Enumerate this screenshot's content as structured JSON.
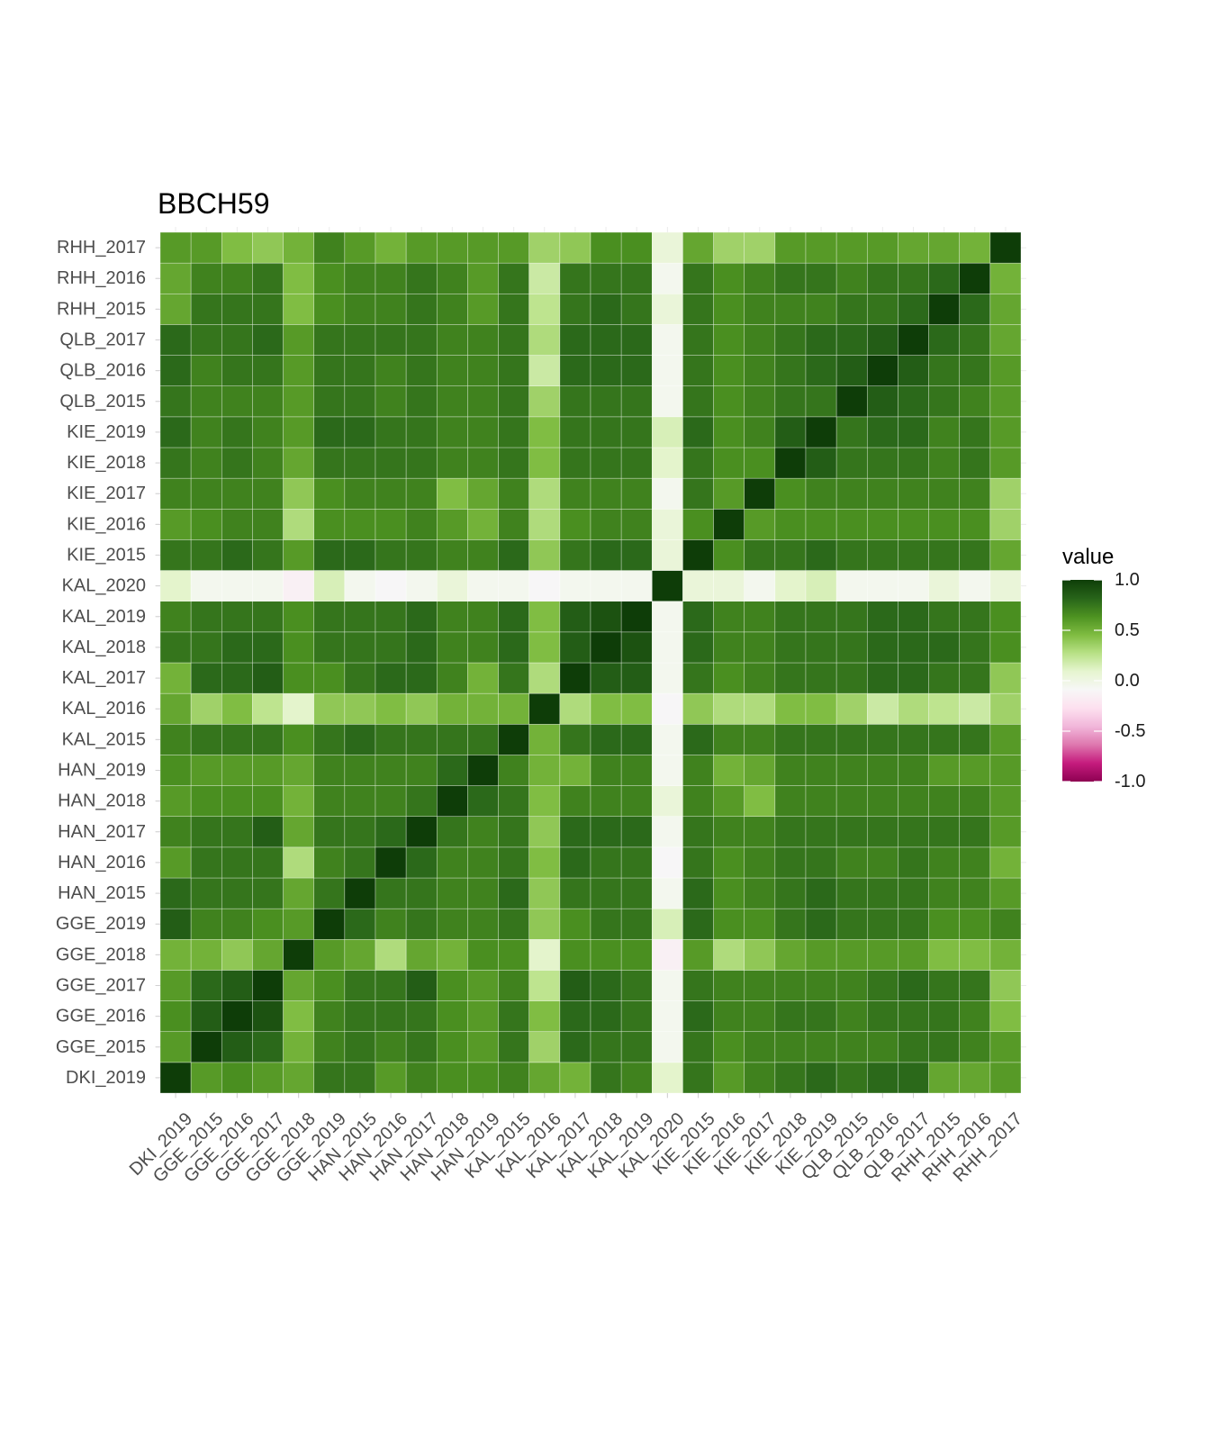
{
  "chart_data": {
    "type": "heatmap",
    "title": "BBCH59",
    "xlabel": "",
    "ylabel": "",
    "labels": [
      "DKI_2019",
      "GGE_2015",
      "GGE_2016",
      "GGE_2017",
      "GGE_2018",
      "GGE_2019",
      "HAN_2015",
      "HAN_2016",
      "HAN_2017",
      "HAN_2018",
      "HAN_2019",
      "KAL_2015",
      "KAL_2016",
      "KAL_2017",
      "KAL_2018",
      "KAL_2019",
      "KAL_2020",
      "KIE_2015",
      "KIE_2016",
      "KIE_2017",
      "KIE_2018",
      "KIE_2019",
      "QLB_2015",
      "QLB_2016",
      "QLB_2017",
      "RHH_2015",
      "RHH_2016",
      "RHH_2017"
    ],
    "matrix": [
      [
        1.0,
        0.6,
        0.65,
        0.6,
        0.55,
        0.75,
        0.75,
        0.6,
        0.7,
        0.65,
        0.65,
        0.7,
        0.55,
        0.5,
        0.75,
        0.7,
        0.1,
        0.75,
        0.6,
        0.7,
        0.75,
        0.8,
        0.75,
        0.8,
        0.8,
        0.55,
        0.55,
        0.6
      ],
      [
        0.6,
        1.0,
        0.85,
        0.8,
        0.5,
        0.7,
        0.75,
        0.7,
        0.75,
        0.65,
        0.6,
        0.75,
        0.35,
        0.8,
        0.75,
        0.75,
        -0.05,
        0.75,
        0.65,
        0.7,
        0.7,
        0.7,
        0.7,
        0.7,
        0.75,
        0.75,
        0.7,
        0.6
      ],
      [
        0.65,
        0.85,
        1.0,
        0.9,
        0.45,
        0.7,
        0.75,
        0.75,
        0.75,
        0.65,
        0.6,
        0.75,
        0.45,
        0.8,
        0.8,
        0.75,
        -0.05,
        0.8,
        0.7,
        0.7,
        0.75,
        0.75,
        0.7,
        0.75,
        0.75,
        0.75,
        0.7,
        0.45
      ],
      [
        0.6,
        0.8,
        0.85,
        1.0,
        0.55,
        0.65,
        0.75,
        0.75,
        0.85,
        0.65,
        0.6,
        0.7,
        0.25,
        0.85,
        0.8,
        0.75,
        -0.05,
        0.75,
        0.7,
        0.7,
        0.7,
        0.7,
        0.7,
        0.75,
        0.8,
        0.75,
        0.75,
        0.4
      ],
      [
        0.5,
        0.5,
        0.4,
        0.55,
        1.0,
        0.6,
        0.55,
        0.3,
        0.55,
        0.5,
        0.65,
        0.65,
        0.1,
        0.65,
        0.65,
        0.65,
        -0.15,
        0.6,
        0.3,
        0.4,
        0.55,
        0.6,
        0.6,
        0.6,
        0.6,
        0.45,
        0.45,
        0.5
      ],
      [
        0.85,
        0.7,
        0.7,
        0.65,
        0.6,
        1.0,
        0.8,
        0.7,
        0.75,
        0.7,
        0.7,
        0.75,
        0.4,
        0.65,
        0.75,
        0.75,
        0.15,
        0.8,
        0.65,
        0.65,
        0.75,
        0.8,
        0.75,
        0.75,
        0.75,
        0.65,
        0.65,
        0.7
      ],
      [
        0.8,
        0.75,
        0.75,
        0.75,
        0.55,
        0.75,
        1.0,
        0.75,
        0.75,
        0.7,
        0.7,
        0.8,
        0.4,
        0.75,
        0.75,
        0.75,
        -0.05,
        0.8,
        0.65,
        0.7,
        0.75,
        0.8,
        0.75,
        0.75,
        0.75,
        0.7,
        0.7,
        0.6
      ],
      [
        0.6,
        0.75,
        0.75,
        0.75,
        0.3,
        0.7,
        0.75,
        1.0,
        0.8,
        0.7,
        0.7,
        0.75,
        0.45,
        0.8,
        0.75,
        0.75,
        -0.1,
        0.75,
        0.65,
        0.7,
        0.75,
        0.75,
        0.7,
        0.7,
        0.75,
        0.7,
        0.7,
        0.5
      ],
      [
        0.7,
        0.75,
        0.75,
        0.85,
        0.55,
        0.75,
        0.75,
        0.8,
        1.0,
        0.75,
        0.7,
        0.75,
        0.4,
        0.8,
        0.8,
        0.8,
        -0.05,
        0.75,
        0.7,
        0.7,
        0.75,
        0.75,
        0.75,
        0.75,
        0.75,
        0.75,
        0.75,
        0.6
      ],
      [
        0.6,
        0.65,
        0.65,
        0.65,
        0.5,
        0.7,
        0.7,
        0.7,
        0.75,
        1.0,
        0.8,
        0.75,
        0.45,
        0.7,
        0.7,
        0.7,
        0.05,
        0.7,
        0.6,
        0.45,
        0.7,
        0.7,
        0.7,
        0.7,
        0.7,
        0.7,
        0.7,
        0.6
      ],
      [
        0.65,
        0.6,
        0.6,
        0.6,
        0.55,
        0.7,
        0.7,
        0.7,
        0.7,
        0.8,
        1.0,
        0.7,
        0.5,
        0.5,
        0.7,
        0.7,
        -0.05,
        0.7,
        0.5,
        0.55,
        0.7,
        0.7,
        0.7,
        0.7,
        0.7,
        0.6,
        0.6,
        0.6
      ],
      [
        0.7,
        0.75,
        0.75,
        0.75,
        0.65,
        0.75,
        0.8,
        0.75,
        0.75,
        0.75,
        0.75,
        1.0,
        0.5,
        0.75,
        0.8,
        0.8,
        -0.05,
        0.8,
        0.7,
        0.7,
        0.75,
        0.75,
        0.75,
        0.75,
        0.75,
        0.75,
        0.75,
        0.6
      ],
      [
        0.55,
        0.35,
        0.45,
        0.25,
        0.1,
        0.4,
        0.4,
        0.45,
        0.4,
        0.5,
        0.5,
        0.5,
        1.0,
        0.3,
        0.45,
        0.45,
        -0.1,
        0.4,
        0.3,
        0.3,
        0.45,
        0.45,
        0.35,
        0.2,
        0.3,
        0.25,
        0.2,
        0.35
      ],
      [
        0.5,
        0.8,
        0.8,
        0.85,
        0.65,
        0.65,
        0.75,
        0.8,
        0.8,
        0.7,
        0.5,
        0.75,
        0.3,
        1.0,
        0.85,
        0.85,
        -0.05,
        0.75,
        0.65,
        0.7,
        0.75,
        0.75,
        0.75,
        0.8,
        0.8,
        0.75,
        0.75,
        0.4
      ],
      [
        0.75,
        0.75,
        0.8,
        0.8,
        0.65,
        0.75,
        0.75,
        0.75,
        0.8,
        0.7,
        0.7,
        0.8,
        0.45,
        0.85,
        1.0,
        0.9,
        -0.05,
        0.8,
        0.7,
        0.7,
        0.75,
        0.75,
        0.75,
        0.8,
        0.8,
        0.8,
        0.75,
        0.65
      ],
      [
        0.7,
        0.75,
        0.75,
        0.75,
        0.65,
        0.75,
        0.75,
        0.75,
        0.8,
        0.7,
        0.7,
        0.8,
        0.45,
        0.85,
        0.9,
        1.0,
        -0.05,
        0.8,
        0.7,
        0.7,
        0.75,
        0.75,
        0.75,
        0.8,
        0.8,
        0.75,
        0.75,
        0.65
      ],
      [
        0.1,
        -0.05,
        -0.05,
        -0.05,
        -0.15,
        0.15,
        -0.05,
        -0.1,
        -0.05,
        0.05,
        -0.05,
        -0.05,
        -0.1,
        -0.05,
        -0.05,
        -0.05,
        1.0,
        0.05,
        0.05,
        -0.05,
        0.1,
        0.15,
        -0.05,
        -0.05,
        -0.05,
        0.05,
        -0.05,
        0.05
      ],
      [
        0.75,
        0.75,
        0.8,
        0.75,
        0.6,
        0.8,
        0.8,
        0.75,
        0.75,
        0.7,
        0.7,
        0.8,
        0.4,
        0.75,
        0.8,
        0.8,
        0.05,
        1.0,
        0.65,
        0.75,
        0.75,
        0.8,
        0.75,
        0.75,
        0.75,
        0.75,
        0.75,
        0.55
      ],
      [
        0.6,
        0.65,
        0.7,
        0.7,
        0.3,
        0.65,
        0.65,
        0.65,
        0.7,
        0.6,
        0.5,
        0.7,
        0.3,
        0.65,
        0.7,
        0.7,
        0.05,
        0.65,
        1.0,
        0.6,
        0.65,
        0.65,
        0.65,
        0.65,
        0.65,
        0.65,
        0.65,
        0.35
      ],
      [
        0.7,
        0.7,
        0.7,
        0.7,
        0.4,
        0.65,
        0.7,
        0.7,
        0.7,
        0.45,
        0.55,
        0.7,
        0.3,
        0.7,
        0.7,
        0.7,
        -0.05,
        0.75,
        0.6,
        1.0,
        0.65,
        0.7,
        0.7,
        0.7,
        0.7,
        0.7,
        0.7,
        0.35
      ],
      [
        0.75,
        0.7,
        0.75,
        0.7,
        0.55,
        0.75,
        0.75,
        0.75,
        0.75,
        0.7,
        0.7,
        0.75,
        0.45,
        0.75,
        0.75,
        0.75,
        0.1,
        0.75,
        0.65,
        0.65,
        1.0,
        0.85,
        0.75,
        0.75,
        0.75,
        0.7,
        0.75,
        0.6
      ],
      [
        0.8,
        0.7,
        0.75,
        0.7,
        0.6,
        0.8,
        0.8,
        0.75,
        0.75,
        0.7,
        0.7,
        0.75,
        0.45,
        0.75,
        0.75,
        0.75,
        0.15,
        0.8,
        0.65,
        0.7,
        0.85,
        1.0,
        0.75,
        0.8,
        0.8,
        0.7,
        0.75,
        0.6
      ],
      [
        0.75,
        0.7,
        0.7,
        0.7,
        0.6,
        0.75,
        0.75,
        0.7,
        0.75,
        0.7,
        0.7,
        0.75,
        0.35,
        0.75,
        0.75,
        0.75,
        -0.05,
        0.75,
        0.65,
        0.7,
        0.75,
        0.75,
        1.0,
        0.85,
        0.8,
        0.75,
        0.7,
        0.6
      ],
      [
        0.8,
        0.7,
        0.75,
        0.75,
        0.6,
        0.75,
        0.75,
        0.7,
        0.75,
        0.7,
        0.7,
        0.75,
        0.2,
        0.8,
        0.8,
        0.8,
        -0.05,
        0.75,
        0.65,
        0.7,
        0.75,
        0.8,
        0.85,
        1.0,
        0.85,
        0.75,
        0.75,
        0.6
      ],
      [
        0.8,
        0.75,
        0.75,
        0.8,
        0.6,
        0.75,
        0.75,
        0.75,
        0.75,
        0.7,
        0.7,
        0.75,
        0.3,
        0.8,
        0.8,
        0.8,
        -0.05,
        0.75,
        0.65,
        0.7,
        0.75,
        0.8,
        0.8,
        0.85,
        1.0,
        0.8,
        0.75,
        0.55
      ],
      [
        0.55,
        0.75,
        0.75,
        0.75,
        0.45,
        0.65,
        0.7,
        0.7,
        0.75,
        0.7,
        0.6,
        0.75,
        0.25,
        0.75,
        0.8,
        0.75,
        0.05,
        0.75,
        0.65,
        0.7,
        0.7,
        0.7,
        0.75,
        0.75,
        0.8,
        1.0,
        0.8,
        0.55
      ],
      [
        0.55,
        0.7,
        0.7,
        0.75,
        0.45,
        0.65,
        0.7,
        0.7,
        0.75,
        0.7,
        0.6,
        0.75,
        0.2,
        0.75,
        0.75,
        0.75,
        -0.05,
        0.75,
        0.65,
        0.7,
        0.75,
        0.75,
        0.7,
        0.75,
        0.75,
        0.8,
        1.0,
        0.5
      ],
      [
        0.6,
        0.6,
        0.45,
        0.4,
        0.5,
        0.7,
        0.6,
        0.5,
        0.6,
        0.6,
        0.6,
        0.6,
        0.35,
        0.4,
        0.65,
        0.65,
        0.05,
        0.55,
        0.35,
        0.35,
        0.6,
        0.6,
        0.6,
        0.6,
        0.55,
        0.55,
        0.5,
        1.0
      ]
    ],
    "color_scale": {
      "title": "value",
      "limits": [
        -1.0,
        1.0
      ],
      "breaks": [
        1.0,
        0.5,
        0.0,
        -0.5,
        -1.0
      ],
      "break_labels": [
        "1.0",
        "0.5",
        "0.0",
        "-0.5",
        "-1.0"
      ],
      "stops": [
        "#8e0152",
        "#c51b7d",
        "#de77ae",
        "#f1b6da",
        "#fde0ef",
        "#f7f7f7",
        "#e6f5d0",
        "#b8e186",
        "#7fbc41",
        "#4d9221",
        "#276419",
        "#0e3d08"
      ]
    },
    "legend": "right",
    "grid": true
  }
}
